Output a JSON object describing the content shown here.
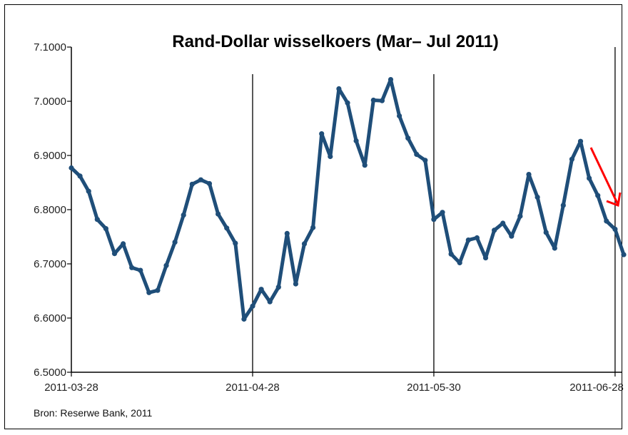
{
  "chart_data": {
    "type": "line",
    "title": "Rand-Dollar wisselkoers (Mar– Jul 2011)",
    "source": "Bron: Reserwe Bank, 2011",
    "xlabel": "",
    "ylabel": "",
    "ylim": [
      6.5,
      7.1
    ],
    "y_ticks": [
      "6.5000",
      "6.6000",
      "6.7000",
      "6.8000",
      "6.9000",
      "7.0000",
      "7.1000"
    ],
    "x_ticks": [
      "2011-03-28",
      "2011-04-28",
      "2011-05-30",
      "2011-06-28"
    ],
    "x_tick_index": [
      0,
      21,
      42,
      63
    ],
    "grid": "vertical lines at x tick dates",
    "line_color": "#1f4e79",
    "arrow_color": "#ff0000",
    "annotation": "red downward arrow near the last values",
    "series": [
      {
        "values": [
          6.877,
          6.862,
          6.834,
          6.782,
          6.765,
          6.719,
          6.737,
          6.693,
          6.688,
          6.647,
          6.651,
          6.697,
          6.74,
          6.79,
          6.847,
          6.855,
          6.848,
          6.792,
          6.766,
          6.738,
          6.598,
          6.622,
          6.653,
          6.63,
          6.657,
          6.756,
          6.663,
          6.737,
          6.767,
          6.94,
          6.898,
          7.023,
          6.997,
          6.927,
          6.882,
          7.002,
          7.001,
          7.04,
          6.973,
          6.932,
          6.902,
          6.891,
          6.782,
          6.795,
          6.718,
          6.702,
          6.744,
          6.748,
          6.711,
          6.762,
          6.775,
          6.751,
          6.788,
          6.865,
          6.823,
          6.758,
          6.729,
          6.808,
          6.893,
          6.926,
          6.858,
          6.826,
          6.779,
          6.764,
          6.717
        ]
      }
    ]
  }
}
